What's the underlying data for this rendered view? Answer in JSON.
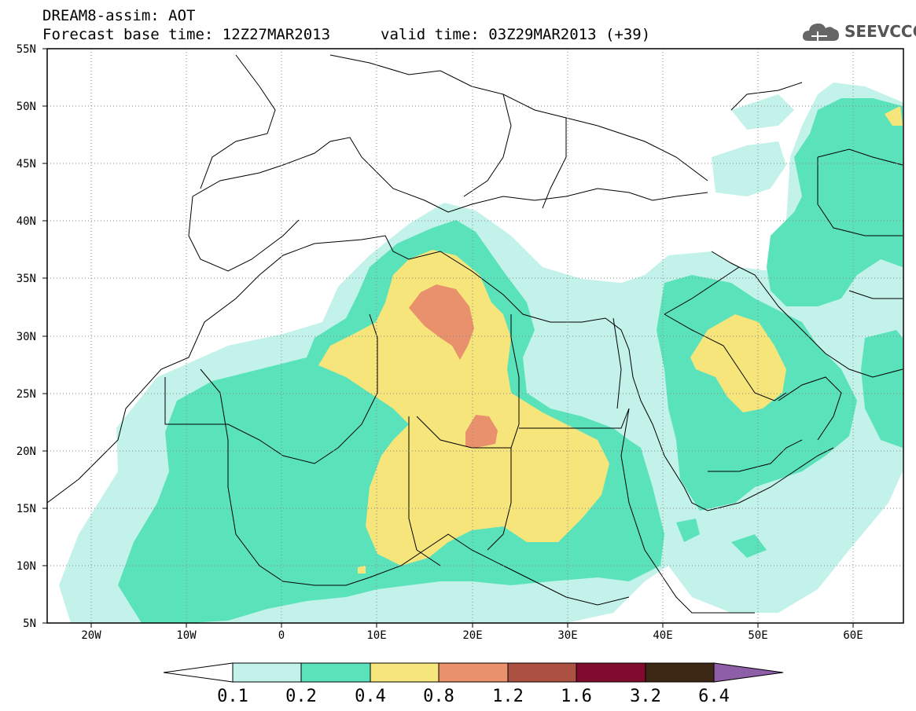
{
  "header": {
    "title": "DREAM8-assim: AOT",
    "base_time": "Forecast base time: 12Z27MAR2013",
    "valid_time": "valid time: 03Z29MAR2013 (+39)",
    "logo_text": "SEEVCCC"
  },
  "map": {
    "lat_labels": [
      "55N",
      "50N",
      "45N",
      "40N",
      "35N",
      "30N",
      "25N",
      "20N",
      "15N",
      "10N",
      "5N"
    ],
    "lon_labels": [
      "20W",
      "10W",
      "0",
      "10E",
      "20E",
      "30E",
      "40E",
      "50E",
      "60E"
    ],
    "extent": {
      "lon": [
        -25,
        65
      ],
      "lat": [
        5,
        55
      ]
    },
    "gridlines": "dotted"
  },
  "legend": {
    "thresholds": [
      "0.1",
      "0.2",
      "0.4",
      "0.8",
      "1.2",
      "1.6",
      "3.2",
      "6.4"
    ],
    "colors": [
      "#ffffff",
      "#c3f2ea",
      "#5ae3bb",
      "#f6e57b",
      "#e9906c",
      "#ac5142",
      "#800b2f",
      "#3d2815",
      "#8e5ea8"
    ]
  }
}
